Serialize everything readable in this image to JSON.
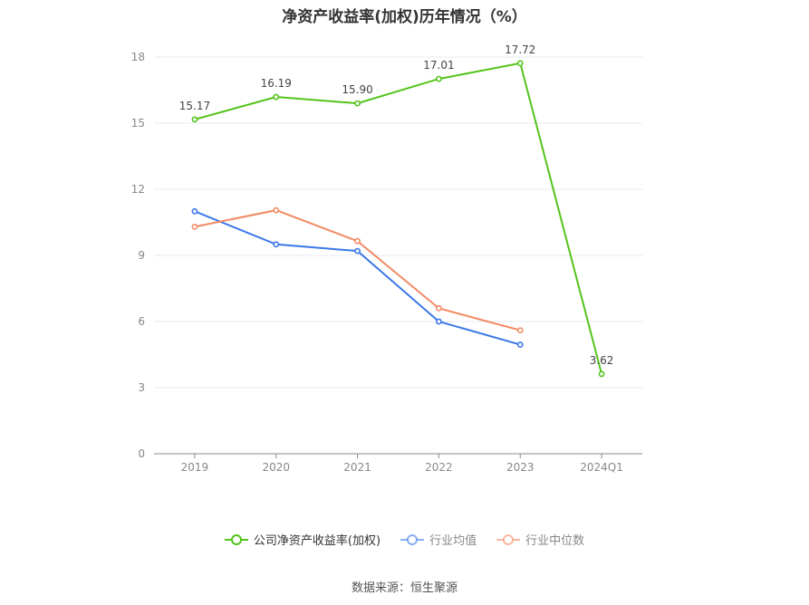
{
  "source": "数据来源：恒生聚源",
  "chart_data": {
    "type": "line",
    "title": "净资产收益率(加权)历年情况（%）",
    "xlabel": "",
    "ylabel": "",
    "categories": [
      "2019",
      "2020",
      "2021",
      "2022",
      "2023",
      "2024Q1"
    ],
    "ylim": [
      0,
      18
    ],
    "yticks": [
      0,
      3,
      6,
      9,
      12,
      15,
      18
    ],
    "grid": true,
    "legend_position": "bottom",
    "series": [
      {
        "name": "公司净资产收益率(加权)",
        "color": "#52c41a",
        "values": [
          15.17,
          16.19,
          15.9,
          17.01,
          17.72,
          3.62
        ],
        "labels": [
          "15.17",
          "16.19",
          "15.90",
          "17.01",
          "17.72",
          "3.62"
        ]
      },
      {
        "name": "行业均值",
        "color": "#3b78e7",
        "values": [
          11.0,
          9.5,
          9.2,
          6.0,
          4.95,
          null
        ]
      },
      {
        "name": "行业中位数",
        "color": "#f28a63",
        "values": [
          10.3,
          11.05,
          9.65,
          6.6,
          5.6,
          null
        ]
      }
    ]
  }
}
